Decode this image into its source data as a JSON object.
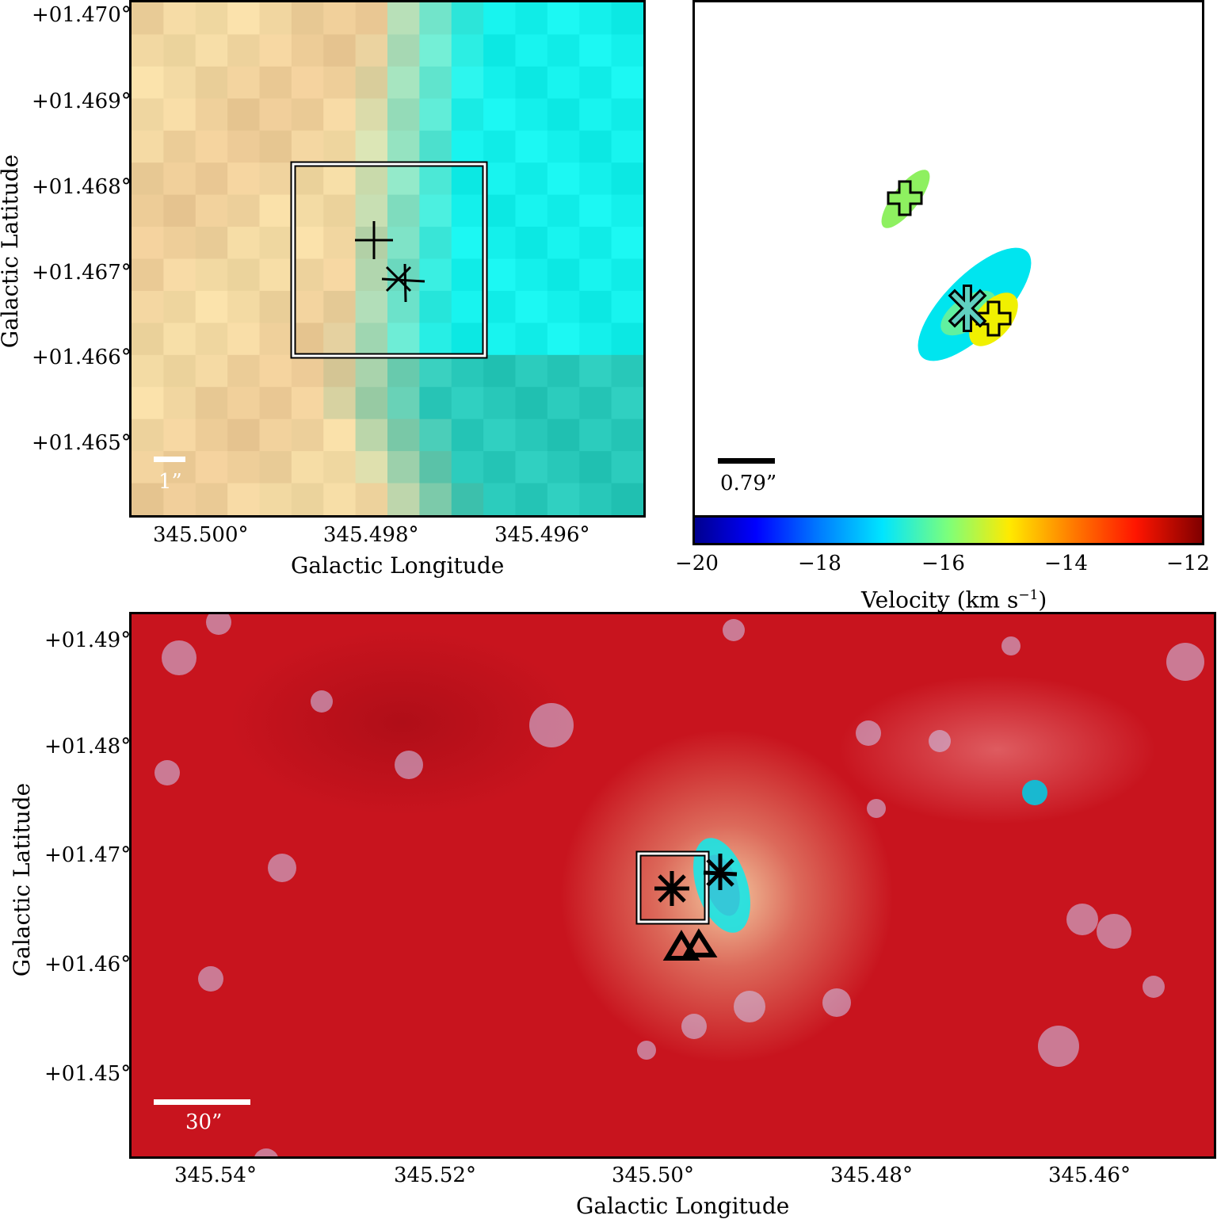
{
  "panel_a": {
    "y_ticks": [
      "+01.470°",
      "+01.469°",
      "+01.468°",
      "+01.467°",
      "+01.466°",
      "+01.465°"
    ],
    "x_ticks": [
      "345.500°",
      "345.498°",
      "345.496°"
    ],
    "x_title": "Galactic Longitude",
    "y_title": "Galactic Latitude",
    "scalebar_label": "1”"
  },
  "panel_b": {
    "scalebar_label": "0.79”",
    "colorbar_ticks": [
      "−20",
      "−18",
      "−16",
      "−14",
      "−12"
    ],
    "colorbar_title": "Velocity (km s",
    "colorbar_title_sup": "−1",
    "colorbar_title_end": ")",
    "colorbar_range": [
      -20,
      -11.8
    ],
    "colors": {
      "cyan": "#00e5ef",
      "green": "#8ef060",
      "yellow": "#f0f000",
      "light_green": "#60f0a0"
    }
  },
  "panel_c": {
    "y_ticks": [
      "+01.49°",
      "+01.48°",
      "+01.47°",
      "+01.46°",
      "+01.45°"
    ],
    "x_ticks": [
      "345.54°",
      "345.52°",
      "345.50°",
      "345.48°",
      "345.46°"
    ],
    "x_title": "Galactic Longitude",
    "y_title": "Galactic Latitude",
    "scalebar_label": "30”"
  },
  "colors": {
    "bg_red": "#c8141e",
    "cyan": "#19e6e6",
    "cream": "#f5deb0"
  }
}
